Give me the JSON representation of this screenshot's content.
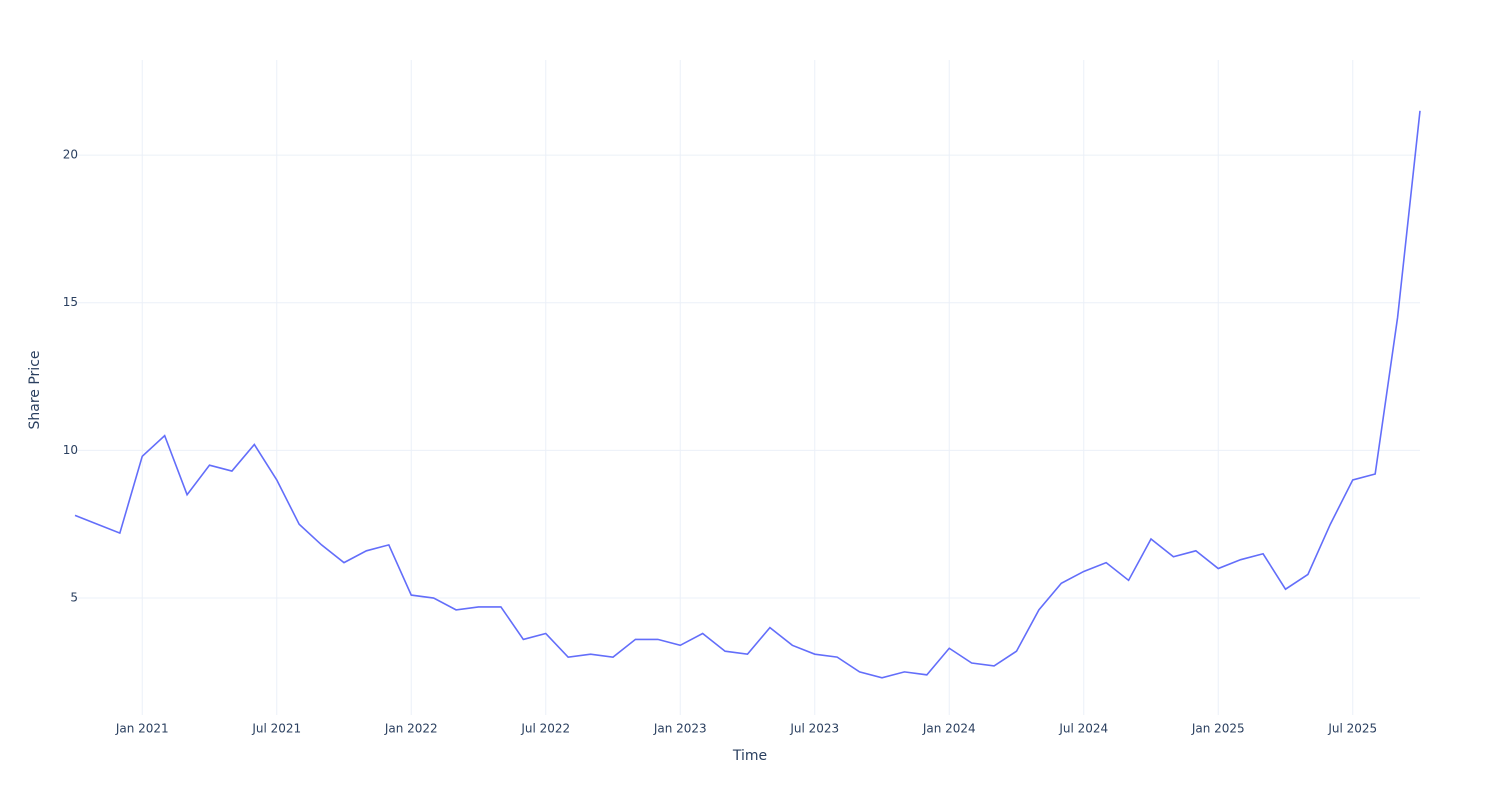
{
  "chart_data": {
    "type": "line",
    "x_label": "Time",
    "y_label": "Share Price",
    "x": [
      "2020-10",
      "2020-11",
      "2020-12",
      "2021-01",
      "2021-02",
      "2021-03",
      "2021-04",
      "2021-05",
      "2021-06",
      "2021-07",
      "2021-08",
      "2021-09",
      "2021-10",
      "2021-11",
      "2021-12",
      "2022-01",
      "2022-02",
      "2022-03",
      "2022-04",
      "2022-05",
      "2022-06",
      "2022-07",
      "2022-08",
      "2022-09",
      "2022-10",
      "2022-11",
      "2022-12",
      "2023-01",
      "2023-02",
      "2023-03",
      "2023-04",
      "2023-05",
      "2023-06",
      "2023-07",
      "2023-08",
      "2023-09",
      "2023-10",
      "2023-11",
      "2023-12",
      "2024-01",
      "2024-02",
      "2024-03",
      "2024-04",
      "2024-05",
      "2024-06",
      "2024-07",
      "2024-08",
      "2024-09",
      "2024-10",
      "2024-11",
      "2024-12",
      "2025-01",
      "2025-02",
      "2025-03",
      "2025-04",
      "2025-05",
      "2025-06",
      "2025-07",
      "2025-08",
      "2025-09",
      "2025-10"
    ],
    "series": [
      {
        "color": "#636efa",
        "values": [
          7.8,
          7.5,
          7.2,
          9.8,
          10.5,
          8.5,
          9.5,
          9.3,
          10.2,
          9.0,
          7.5,
          6.8,
          6.2,
          6.6,
          6.8,
          5.1,
          5.0,
          4.6,
          4.7,
          4.7,
          3.6,
          3.8,
          3.0,
          3.1,
          3.0,
          3.6,
          3.6,
          3.4,
          3.8,
          3.2,
          3.1,
          4.0,
          3.4,
          3.1,
          3.0,
          2.5,
          2.3,
          2.5,
          2.4,
          3.3,
          2.8,
          2.7,
          3.2,
          4.6,
          5.5,
          5.9,
          6.2,
          5.6,
          7.0,
          6.4,
          6.6,
          6.0,
          6.3,
          6.5,
          5.3,
          5.8,
          7.5,
          9.0,
          9.2,
          14.5,
          21.5
        ]
      }
    ],
    "xlim": [
      "2020-10",
      "2025-10"
    ],
    "xticks": [
      {
        "value": "2021-01",
        "label": "Jan 2021"
      },
      {
        "value": "2021-07",
        "label": "Jul 2021"
      },
      {
        "value": "2022-01",
        "label": "Jan 2022"
      },
      {
        "value": "2022-07",
        "label": "Jul 2022"
      },
      {
        "value": "2023-01",
        "label": "Jan 2023"
      },
      {
        "value": "2023-07",
        "label": "Jul 2023"
      },
      {
        "value": "2024-01",
        "label": "Jan 2024"
      },
      {
        "value": "2024-07",
        "label": "Jul 2024"
      },
      {
        "value": "2025-01",
        "label": "Jan 2025"
      },
      {
        "value": "2025-07",
        "label": "Jul 2025"
      }
    ],
    "ylim": [
      1.04,
      23.22
    ],
    "yticks": [
      5,
      10,
      15,
      20
    ],
    "grid": true
  }
}
